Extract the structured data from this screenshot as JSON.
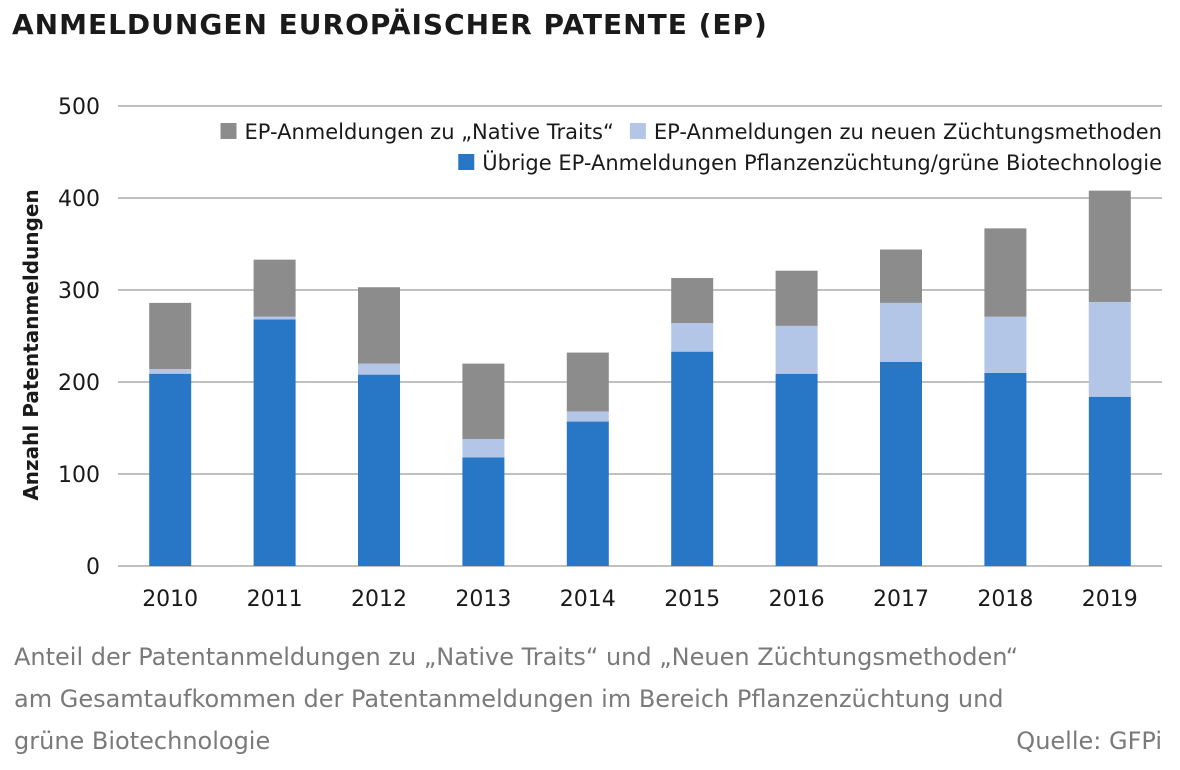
{
  "title": "ANMELDUNGEN EUROPÄISCHER PATENTE (EP)",
  "caption": {
    "line1": "Anteil der Patentanmeldungen zu „Native Traits“ und „Neuen Züchtungsmethoden“",
    "line2": "am Gesamtaufkommen der Patentanmeldungen im Bereich Pflanzenzüchtung und",
    "line3": "grüne Biotechnologie",
    "source": "Quelle: GFPi"
  },
  "colors": {
    "native": "#8c8c8c",
    "neue": "#b4c6e7",
    "uebrige": "#2876c6",
    "grid": "#9a9a9a"
  },
  "chart_data": {
    "type": "bar",
    "stacked": true,
    "ylabel": "Anzahl Patentanmeldungen",
    "xlabel": "",
    "ylim": [
      0,
      500
    ],
    "yticks": [
      0,
      100,
      200,
      300,
      400,
      500
    ],
    "grid": true,
    "legend_placement": "top-right",
    "categories": [
      "2010",
      "2011",
      "2012",
      "2013",
      "2014",
      "2015",
      "2016",
      "2017",
      "2018",
      "2019"
    ],
    "series": [
      {
        "name": "Übrige EP-Anmeldungen Pflanzenzüchtung/grüne Biotechnologie",
        "values": [
          209,
          268,
          208,
          118,
          157,
          233,
          209,
          222,
          210,
          184
        ]
      },
      {
        "name": "EP-Anmeldungen zu neuen Züchtungsmethoden",
        "values": [
          5,
          3,
          12,
          20,
          11,
          31,
          52,
          64,
          61,
          103
        ]
      },
      {
        "name": "EP-Anmeldungen zu „Native Traits“",
        "values": [
          72,
          62,
          83,
          82,
          64,
          49,
          60,
          58,
          96,
          121
        ]
      }
    ]
  }
}
